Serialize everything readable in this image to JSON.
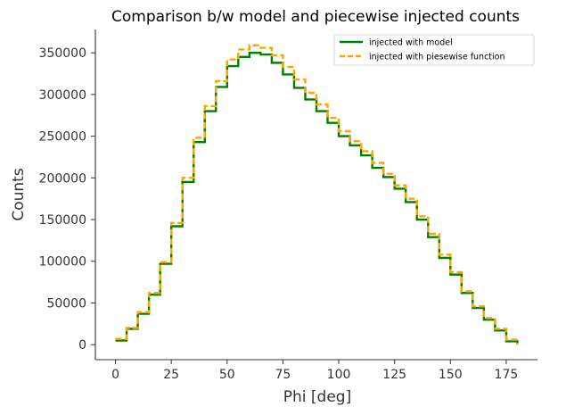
{
  "chart_data": {
    "type": "line",
    "drawstyle": "steps-post",
    "title": "Comparison b/w model and piecewise injected counts",
    "xlabel": "Phi [deg]",
    "ylabel": "Counts",
    "xlim": [
      -9,
      189
    ],
    "ylim": [
      -18000,
      378000
    ],
    "xticks": [
      0,
      25,
      50,
      75,
      100,
      125,
      150,
      175
    ],
    "yticks": [
      0,
      50000,
      100000,
      150000,
      200000,
      250000,
      300000,
      350000
    ],
    "legend_position": "top-right",
    "grid": false,
    "x": [
      0,
      5,
      10,
      15,
      20,
      25,
      30,
      35,
      40,
      45,
      50,
      55,
      60,
      65,
      70,
      75,
      80,
      85,
      90,
      95,
      100,
      105,
      110,
      115,
      120,
      125,
      130,
      135,
      140,
      145,
      150,
      155,
      160,
      165,
      170,
      175,
      180
    ],
    "series": [
      {
        "name": "injected with model",
        "color": "#008000",
        "style": "solid",
        "values": [
          5000,
          19000,
          37000,
          60000,
          97000,
          142000,
          195000,
          243000,
          280000,
          309000,
          334000,
          345000,
          350000,
          348000,
          338000,
          324000,
          308000,
          294000,
          280000,
          266000,
          250000,
          239000,
          227000,
          212000,
          201000,
          187000,
          171000,
          150000,
          129000,
          104000,
          84000,
          62000,
          44000,
          30000,
          17000,
          4000,
          0
        ]
      },
      {
        "name": "injected with piesewise function",
        "color": "#ffa500",
        "style": "dashed",
        "values": [
          7000,
          20000,
          39000,
          62000,
          99000,
          146000,
          200000,
          248000,
          286000,
          316000,
          342000,
          354000,
          359000,
          356000,
          347000,
          333000,
          318000,
          302000,
          288000,
          272000,
          256000,
          244000,
          232000,
          218000,
          205000,
          191000,
          175000,
          154000,
          133000,
          108000,
          87000,
          64000,
          46000,
          32000,
          19000,
          6000,
          0
        ]
      }
    ]
  }
}
